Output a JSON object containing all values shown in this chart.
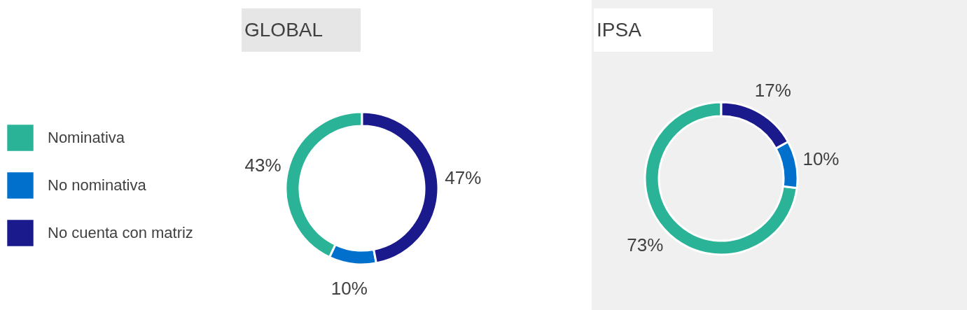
{
  "chart_data": [
    {
      "type": "donut",
      "title": "GLOBAL",
      "categories": [
        "Nominativa",
        "No nominativa",
        "No cuenta con matriz"
      ],
      "values": [
        43,
        10,
        47
      ],
      "colors": [
        "#2ab397",
        "#0070cc",
        "#1a1a8c"
      ],
      "value_labels": [
        "43%",
        "10%",
        "47%"
      ],
      "legend": "left"
    },
    {
      "type": "donut",
      "title": "IPSA",
      "categories": [
        null,
        null,
        null
      ],
      "values": [
        73,
        10,
        17
      ],
      "colors": [
        "#2ab397",
        "#0070cc",
        "#1a1a8c"
      ],
      "value_labels": [
        "73%",
        "10%",
        "17%"
      ],
      "legend": false
    }
  ]
}
